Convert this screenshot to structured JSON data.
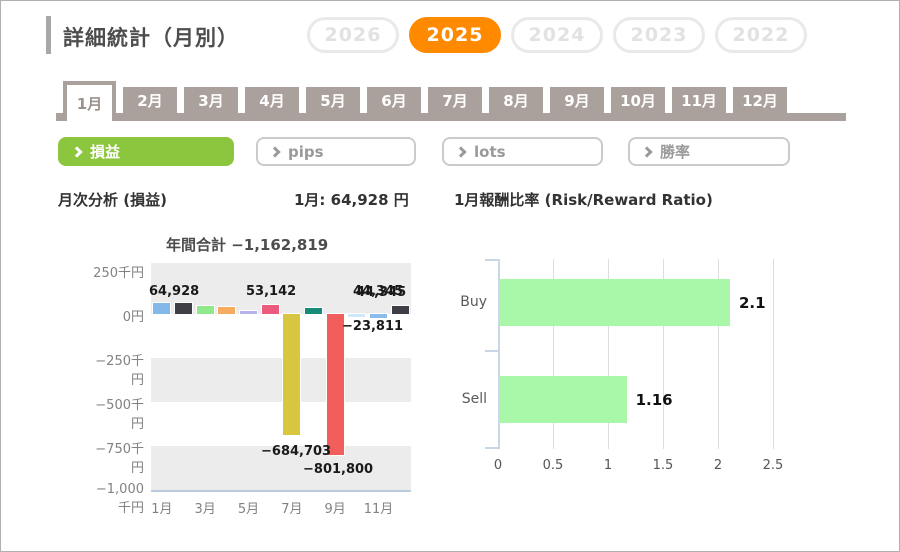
{
  "page": {
    "title": "詳細統計（月別）"
  },
  "year_selector": {
    "years": [
      {
        "label": "2026",
        "active": false
      },
      {
        "label": "2025",
        "active": true
      },
      {
        "label": "2024",
        "active": false
      },
      {
        "label": "2023",
        "active": false
      },
      {
        "label": "2022",
        "active": false
      }
    ]
  },
  "month_tabs": {
    "labels": [
      "1月",
      "2月",
      "3月",
      "4月",
      "5月",
      "6月",
      "7月",
      "8月",
      "9月",
      "10月",
      "11月",
      "12月"
    ],
    "active": "1月"
  },
  "filter_buttons": [
    {
      "label": "損益",
      "active": true
    },
    {
      "label": "pips",
      "active": false
    },
    {
      "label": "lots",
      "active": false
    },
    {
      "label": "勝率",
      "active": false
    }
  ],
  "section_headers": {
    "monthly_analysis": "月次分析 (損益)",
    "month_summary": "1月: 64,928 円",
    "risk_reward": "1月報酬比率 (Risk/Reward Ratio)"
  },
  "colors": {
    "accent_orange": "#ff8a00",
    "tab_taupe": "#aba19c",
    "filter_green": "#8cc63e",
    "stripe_gray": "#ececec",
    "axis_blue_gray": "#c9d6e6",
    "rr_bar_green": "#a9f8a9"
  },
  "chart_data": [
    {
      "type": "bar",
      "title": "年間合計 −1,162,819",
      "annual_total": -1162819,
      "categories": [
        "1月",
        "2月",
        "3月",
        "4月",
        "5月",
        "6月",
        "7月",
        "8月",
        "9月",
        "10月",
        "11月",
        "12月"
      ],
      "values": [
        64928,
        62000,
        45000,
        40000,
        17000,
        53142,
        -684703,
        34000,
        -801800,
        -15000,
        -23811,
        44345
      ],
      "bar_colors": [
        "#85b8ea",
        "#403f46",
        "#8fe98b",
        "#f6ab61",
        "#b7b3ec",
        "#ea5b7d",
        "#d8c640",
        "#178a7a",
        "#f15e5c",
        "#cfe9f8",
        "#8abde9",
        "#3f3e47"
      ],
      "labeled_points": [
        {
          "index": 0,
          "text": "64,928",
          "doubled": false
        },
        {
          "index": 5,
          "text": "53,142",
          "doubled": false
        },
        {
          "index": 6,
          "text": "−684,703",
          "doubled": false
        },
        {
          "index": 8,
          "text": "−801,800",
          "doubled": false
        },
        {
          "index": 10,
          "text": "−23,811",
          "doubled": false
        },
        {
          "index": 11,
          "text": "44,345",
          "doubled": true
        }
      ],
      "y_ticks": [
        "250千円",
        "0円",
        "−250千円",
        "−500千円",
        "−750千円",
        "−1,000千円"
      ],
      "y_tick_values": [
        250000,
        0,
        -250000,
        -500000,
        -750000,
        -1000000
      ],
      "x_tick_labels": [
        "1月",
        "3月",
        "5月",
        "7月",
        "9月",
        "11月"
      ],
      "ylim": [
        -1000000,
        250000
      ],
      "grid": "striped-bands",
      "legend": "none"
    },
    {
      "type": "bar",
      "orientation": "horizontal",
      "categories": [
        "Buy",
        "Sell"
      ],
      "values": [
        2.1,
        1.16
      ],
      "value_labels": [
        "2.1",
        "1.16"
      ],
      "x_ticks": [
        "0",
        "0.5",
        "1",
        "1.5",
        "2",
        "2.5"
      ],
      "x_tick_values": [
        0,
        0.5,
        1,
        1.5,
        2,
        2.5
      ],
      "xlim": [
        0,
        2.5
      ],
      "bar_color": "#a9f8a9",
      "grid": "vertical",
      "legend": "none"
    }
  ]
}
